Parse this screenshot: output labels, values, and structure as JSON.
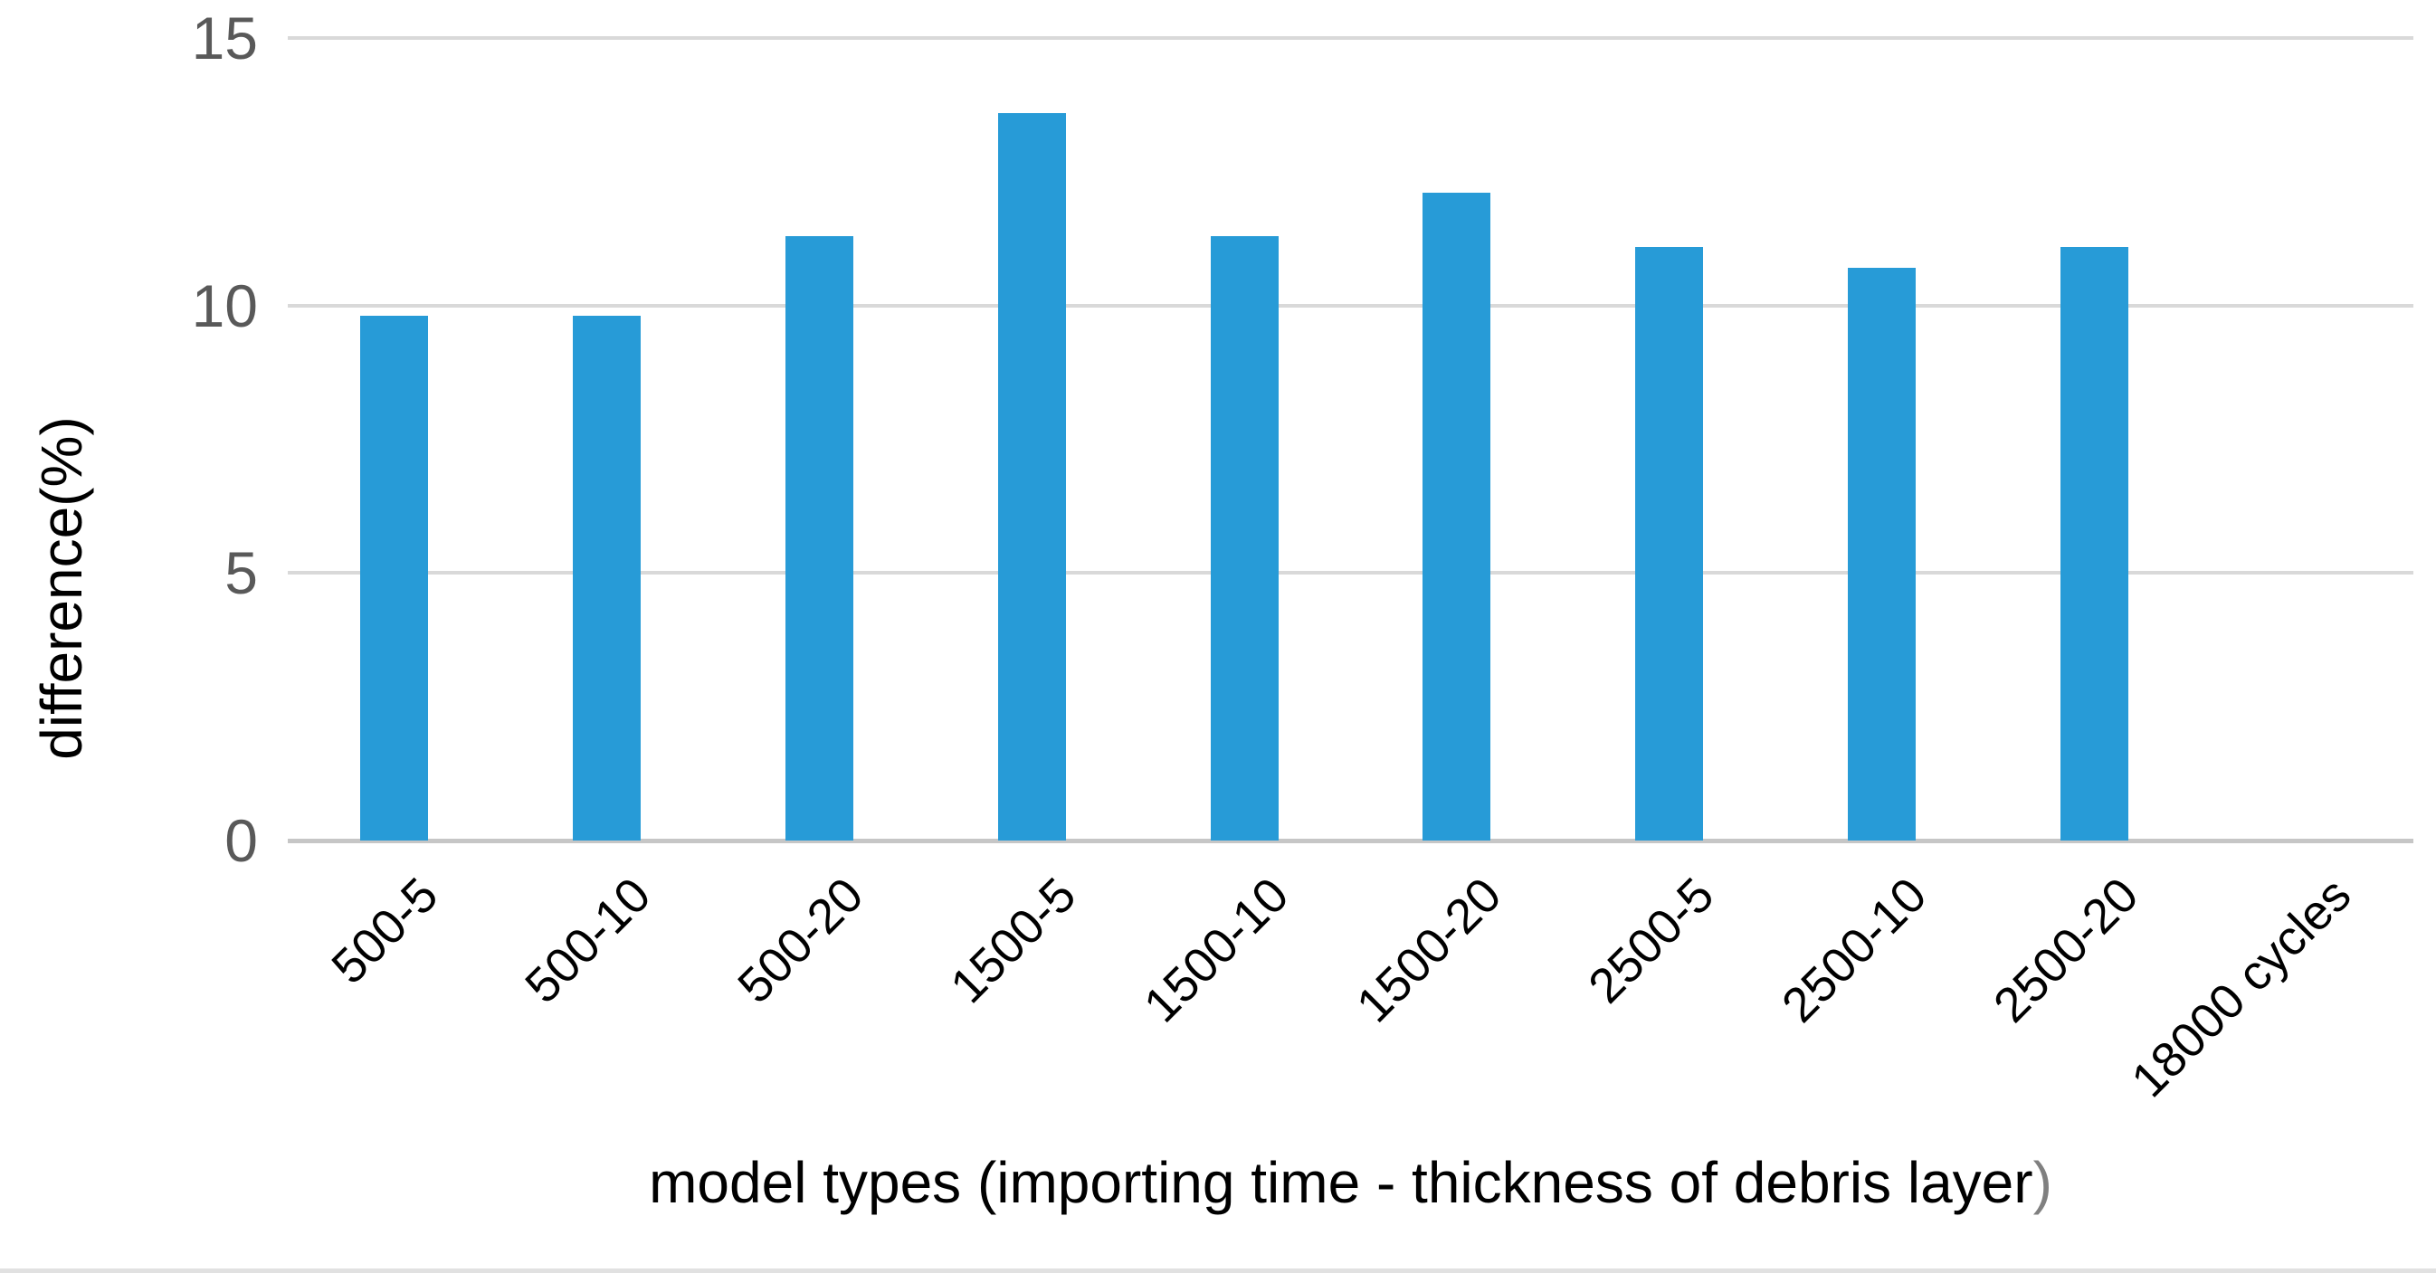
{
  "chart_data": {
    "type": "bar",
    "categories": [
      "500-5",
      "500-10",
      "500-20",
      "1500-5",
      "1500-10",
      "1500-20",
      "2500-5",
      "2500-10",
      "2500-20",
      "18000 cycles"
    ],
    "values": [
      9.8,
      9.8,
      11.3,
      13.6,
      11.3,
      12.1,
      11.1,
      10.7,
      11.1,
      null
    ],
    "title": "",
    "xlabel_main": "model types (importing time - thickness of debris layer",
    "xlabel_suffix": ")",
    "ylabel": "difference(%)",
    "yticks": [
      0,
      5,
      10,
      15
    ],
    "ylim": [
      0,
      15
    ],
    "grid": true,
    "legend_position": "none",
    "colors": {
      "bar": "#279bd7",
      "gridline": "#d9d9d9",
      "axis_line": "#c6c6c6",
      "tick_label": "#595959",
      "category_label": "#000000",
      "axis_title": "#000000",
      "xlabel_suffix": "#808080",
      "bottom_strip": "#e1e1e1",
      "background": "#ffffff"
    }
  }
}
